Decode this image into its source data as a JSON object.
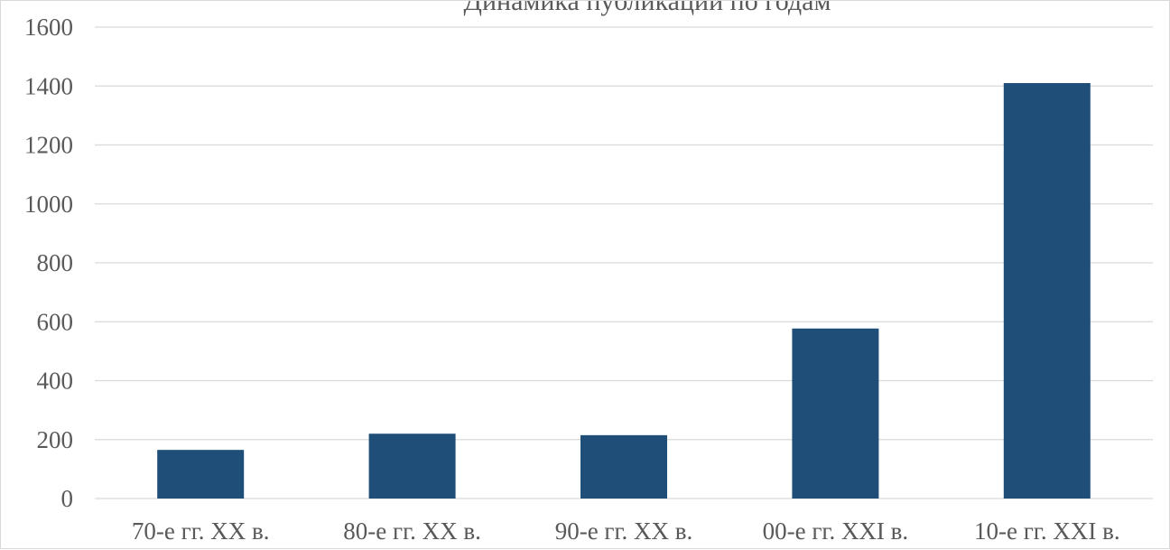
{
  "chart_data": {
    "type": "bar",
    "title": "Динамика публикаций по годам",
    "categories": [
      "70-е гг. XX в.",
      "80-е гг. XX в.",
      "90-е гг. XX в.",
      "00-е гг. XXI в.",
      "10-е гг. XXI в."
    ],
    "values": [
      165,
      220,
      215,
      577,
      1410
    ],
    "yticks": [
      0,
      200,
      400,
      600,
      800,
      1000,
      1200,
      1400,
      1600
    ],
    "ylim": [
      0,
      1600
    ],
    "xlabel": "",
    "ylabel": "",
    "grid": true,
    "legend": "none",
    "bar_color": "#1f4e79",
    "grid_color": "#d9d9d9",
    "text_color": "#595959"
  }
}
